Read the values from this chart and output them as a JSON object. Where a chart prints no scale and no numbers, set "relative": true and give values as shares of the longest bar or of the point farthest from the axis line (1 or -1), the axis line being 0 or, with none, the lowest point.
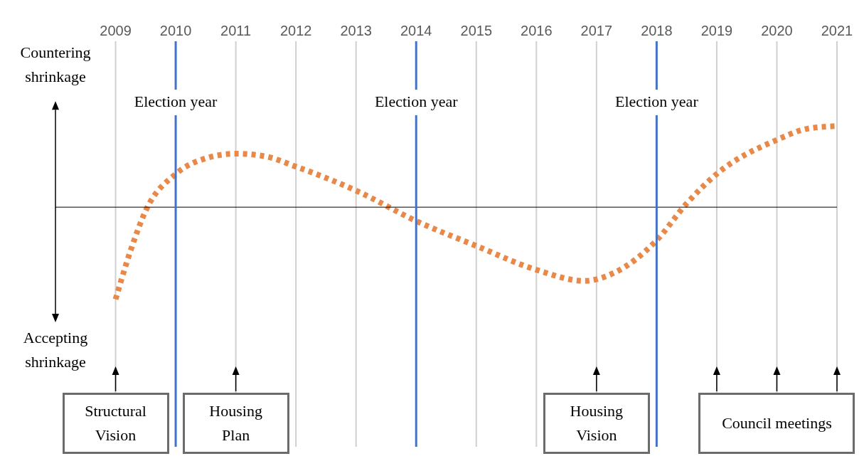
{
  "chart_data": {
    "type": "line",
    "relative": true,
    "x": [
      2009,
      2009.25,
      2009.5,
      2010,
      2010.5,
      2011,
      2011.5,
      2012,
      2013,
      2014,
      2015,
      2016,
      2016.8,
      2017.3,
      2018,
      2018.5,
      2019,
      2020,
      2020.5,
      2021
    ],
    "series": [
      {
        "color": "#e8894a",
        "values": [
          -1,
          -0.47,
          -0.04,
          0.36,
          0.53,
          0.58,
          0.55,
          0.44,
          0.18,
          -0.15,
          -0.42,
          -0.68,
          -0.8,
          -0.71,
          -0.36,
          0.04,
          0.36,
          0.73,
          0.85,
          0.88
        ]
      }
    ],
    "xlim": [
      2008,
      2021
    ],
    "xticks": [
      2009,
      2010,
      2011,
      2012,
      2013,
      2014,
      2015,
      2016,
      2017,
      2018,
      2019,
      2020,
      2021
    ],
    "grid": "x",
    "line_style": "dotted",
    "marker": "none",
    "legend": false,
    "ref_lines": [
      {
        "axis": "x",
        "value": 2010,
        "label": "Election year",
        "color": "#4472c4"
      },
      {
        "axis": "x",
        "value": 2014,
        "label": "Election year",
        "color": "#4472c4"
      },
      {
        "axis": "x",
        "value": 2018,
        "label": "Election year",
        "color": "#4472c4"
      }
    ],
    "annotations": [
      "Countering shrinkage",
      "Accepting shrinkage",
      "Structural Vision",
      "Housing Plan",
      "Housing Vision",
      "Council meetings"
    ]
  }
}
